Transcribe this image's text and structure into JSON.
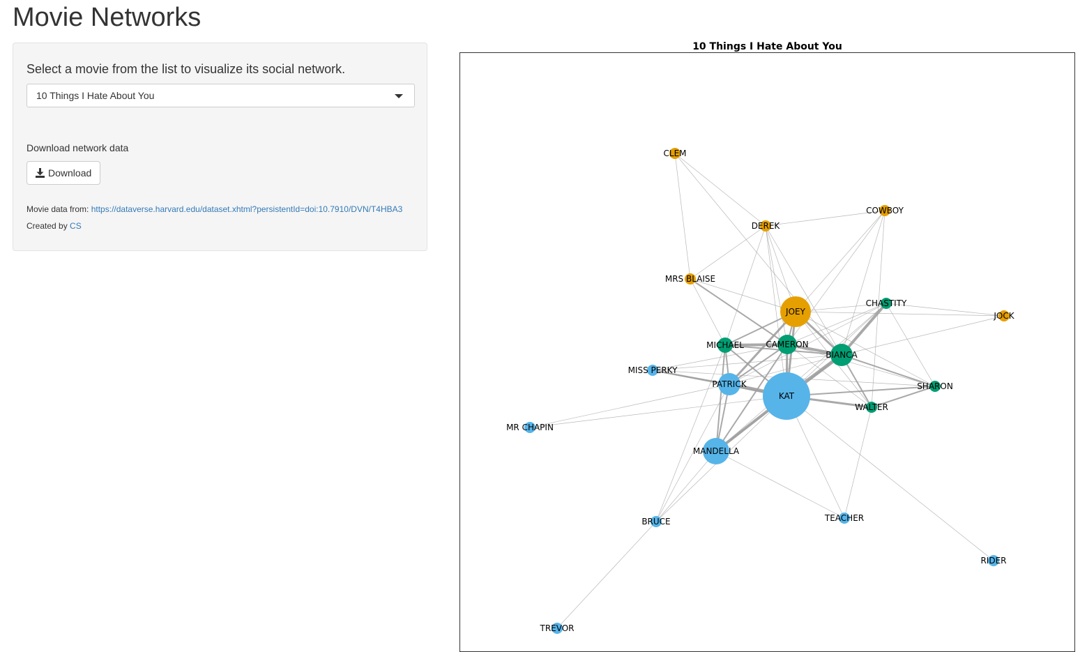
{
  "app": {
    "title": "Movie Networks"
  },
  "sidebar": {
    "select_label": "Select a movie from the list to visualize its social network.",
    "selected_movie": "10 Things I Hate About You",
    "download_label": "Download network data",
    "download_button": "Download",
    "download_icon": "download-icon",
    "source_prefix": "Movie data from:",
    "source_link": "https://dataverse.harvard.edu/dataset.xhtml?persistentId=doi:10.7910/DVN/T4HBA3",
    "created_prefix": "Created by",
    "created_link": "CS"
  },
  "graph": {
    "title": "10 Things I Hate About You",
    "colors": {
      "orange": "#e69f00",
      "green": "#009e73",
      "blue": "#56b4e9",
      "edge": "#a0a0a0"
    },
    "nodes": [
      {
        "name": "KAT",
        "group": "blue",
        "importance": 10
      },
      {
        "name": "MANDELLA",
        "group": "blue",
        "importance": 5
      },
      {
        "name": "PATRICK",
        "group": "blue",
        "importance": 4
      },
      {
        "name": "MISS PERKY",
        "group": "blue",
        "importance": 1
      },
      {
        "name": "MR CHAPIN",
        "group": "blue",
        "importance": 1
      },
      {
        "name": "BRUCE",
        "group": "blue",
        "importance": 1
      },
      {
        "name": "TEACHER",
        "group": "blue",
        "importance": 1
      },
      {
        "name": "RIDER",
        "group": "blue",
        "importance": 1
      },
      {
        "name": "TREVOR",
        "group": "blue",
        "importance": 1
      },
      {
        "name": "JOEY",
        "group": "orange",
        "importance": 6
      },
      {
        "name": "DEREK",
        "group": "orange",
        "importance": 1
      },
      {
        "name": "CLEM",
        "group": "orange",
        "importance": 1
      },
      {
        "name": "COWBOY",
        "group": "orange",
        "importance": 1
      },
      {
        "name": "MRS BLAISE",
        "group": "orange",
        "importance": 1
      },
      {
        "name": "JOCK",
        "group": "orange",
        "importance": 1
      },
      {
        "name": "CAMERON",
        "group": "green",
        "importance": 3
      },
      {
        "name": "BIANCA",
        "group": "green",
        "importance": 4
      },
      {
        "name": "MICHAEL",
        "group": "green",
        "importance": 2
      },
      {
        "name": "CHASTITY",
        "group": "green",
        "importance": 1
      },
      {
        "name": "SHARON",
        "group": "green",
        "importance": 1
      },
      {
        "name": "WALTER",
        "group": "green",
        "importance": 1
      }
    ],
    "edges": [
      {
        "source": "KAT",
        "target": "PATRICK",
        "weight": 5
      },
      {
        "source": "KAT",
        "target": "MANDELLA",
        "weight": 4
      },
      {
        "source": "KAT",
        "target": "BIANCA",
        "weight": 5
      },
      {
        "source": "KAT",
        "target": "CAMERON",
        "weight": 3
      },
      {
        "source": "KAT",
        "target": "JOEY",
        "weight": 3
      },
      {
        "source": "KAT",
        "target": "WALTER",
        "weight": 3
      },
      {
        "source": "KAT",
        "target": "MICHAEL",
        "weight": 2
      },
      {
        "source": "KAT",
        "target": "MISS PERKY",
        "weight": 2
      },
      {
        "source": "KAT",
        "target": "SHARON",
        "weight": 2
      },
      {
        "source": "KAT",
        "target": "TEACHER",
        "weight": 1
      },
      {
        "source": "KAT",
        "target": "RIDER",
        "weight": 1
      },
      {
        "source": "KAT",
        "target": "MR CHAPIN",
        "weight": 1
      },
      {
        "source": "KAT",
        "target": "BRUCE",
        "weight": 1
      },
      {
        "source": "KAT",
        "target": "CHASTITY",
        "weight": 1
      },
      {
        "source": "KAT",
        "target": "DEREK",
        "weight": 1
      },
      {
        "source": "PATRICK",
        "target": "JOEY",
        "weight": 3
      },
      {
        "source": "PATRICK",
        "target": "CAMERON",
        "weight": 2
      },
      {
        "source": "PATRICK",
        "target": "MICHAEL",
        "weight": 2
      },
      {
        "source": "PATRICK",
        "target": "MANDELLA",
        "weight": 2
      },
      {
        "source": "PATRICK",
        "target": "MISS PERKY",
        "weight": 2
      },
      {
        "source": "PATRICK",
        "target": "BIANCA",
        "weight": 1
      },
      {
        "source": "PATRICK",
        "target": "MR CHAPIN",
        "weight": 1
      },
      {
        "source": "PATRICK",
        "target": "BRUCE",
        "weight": 1
      },
      {
        "source": "PATRICK",
        "target": "CHASTITY",
        "weight": 1
      },
      {
        "source": "JOEY",
        "target": "BIANCA",
        "weight": 3
      },
      {
        "source": "JOEY",
        "target": "CAMERON",
        "weight": 2
      },
      {
        "source": "JOEY",
        "target": "MICHAEL",
        "weight": 2
      },
      {
        "source": "JOEY",
        "target": "MRS BLAISE",
        "weight": 1
      },
      {
        "source": "JOEY",
        "target": "DEREK",
        "weight": 1
      },
      {
        "source": "JOEY",
        "target": "CHASTITY",
        "weight": 1
      },
      {
        "source": "JOEY",
        "target": "JOCK",
        "weight": 1
      },
      {
        "source": "JOEY",
        "target": "WALTER",
        "weight": 1
      },
      {
        "source": "JOEY",
        "target": "SHARON",
        "weight": 1
      },
      {
        "source": "CAMERON",
        "target": "BIANCA",
        "weight": 4
      },
      {
        "source": "CAMERON",
        "target": "MICHAEL",
        "weight": 4
      },
      {
        "source": "CAMERON",
        "target": "MANDELLA",
        "weight": 2
      },
      {
        "source": "CAMERON",
        "target": "MRS BLAISE",
        "weight": 2
      },
      {
        "source": "CAMERON",
        "target": "CHASTITY",
        "weight": 1
      },
      {
        "source": "CAMERON",
        "target": "WALTER",
        "weight": 1
      },
      {
        "source": "CAMERON",
        "target": "MISS PERKY",
        "weight": 1
      },
      {
        "source": "CAMERON",
        "target": "SHARON",
        "weight": 1
      },
      {
        "source": "BIANCA",
        "target": "CHASTITY",
        "weight": 4
      },
      {
        "source": "BIANCA",
        "target": "WALTER",
        "weight": 2
      },
      {
        "source": "BIANCA",
        "target": "MICHAEL",
        "weight": 2
      },
      {
        "source": "BIANCA",
        "target": "MANDELLA",
        "weight": 2
      },
      {
        "source": "BIANCA",
        "target": "SHARON",
        "weight": 2
      },
      {
        "source": "BIANCA",
        "target": "DEREK",
        "weight": 1
      },
      {
        "source": "BIANCA",
        "target": "COWBOY",
        "weight": 1
      },
      {
        "source": "BIANCA",
        "target": "MISS PERKY",
        "weight": 1
      },
      {
        "source": "MICHAEL",
        "target": "MANDELLA",
        "weight": 2
      },
      {
        "source": "MICHAEL",
        "target": "MRS BLAISE",
        "weight": 1
      },
      {
        "source": "MICHAEL",
        "target": "BRUCE",
        "weight": 1
      },
      {
        "source": "MICHAEL",
        "target": "DEREK",
        "weight": 1
      },
      {
        "source": "MANDELLA",
        "target": "BRUCE",
        "weight": 1
      },
      {
        "source": "MANDELLA",
        "target": "TEACHER",
        "weight": 1
      },
      {
        "source": "MANDELLA",
        "target": "CHASTITY",
        "weight": 1
      },
      {
        "source": "DEREK",
        "target": "CLEM",
        "weight": 1
      },
      {
        "source": "DEREK",
        "target": "COWBOY",
        "weight": 1
      },
      {
        "source": "DEREK",
        "target": "MRS BLAISE",
        "weight": 1
      },
      {
        "source": "DEREK",
        "target": "CAMERON",
        "weight": 1
      },
      {
        "source": "CLEM",
        "target": "MRS BLAISE",
        "weight": 1
      },
      {
        "source": "CLEM",
        "target": "BIANCA",
        "weight": 1
      },
      {
        "source": "COWBOY",
        "target": "JOEY",
        "weight": 1
      },
      {
        "source": "COWBOY",
        "target": "CAMERON",
        "weight": 1
      },
      {
        "source": "COWBOY",
        "target": "WALTER",
        "weight": 1
      },
      {
        "source": "CHASTITY",
        "target": "JOCK",
        "weight": 1
      },
      {
        "source": "CHASTITY",
        "target": "SHARON",
        "weight": 1
      },
      {
        "source": "BIANCA",
        "target": "JOCK",
        "weight": 1
      },
      {
        "source": "WALTER",
        "target": "SHARON",
        "weight": 2
      },
      {
        "source": "WALTER",
        "target": "TEACHER",
        "weight": 1
      },
      {
        "source": "MISS PERKY",
        "target": "SHARON",
        "weight": 1
      },
      {
        "source": "BRUCE",
        "target": "TREVOR",
        "weight": 1
      }
    ]
  }
}
